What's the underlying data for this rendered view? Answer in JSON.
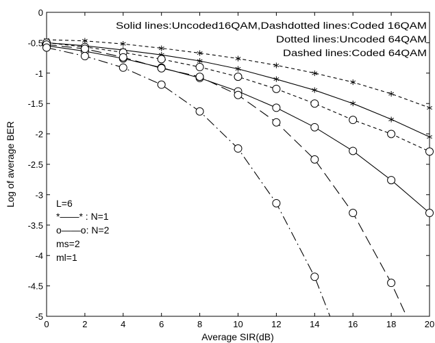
{
  "chart_data": {
    "type": "line",
    "xlabel": "Average SIR(dB)",
    "ylabel": "Log of average BER",
    "xlim": [
      0,
      20
    ],
    "ylim": [
      -5,
      0
    ],
    "xticks": [
      "0",
      "2",
      "4",
      "6",
      "8",
      "10",
      "12",
      "14",
      "16",
      "18",
      "20"
    ],
    "yticks": [
      "0",
      "-0.5",
      "-1",
      "-1.5",
      "-2",
      "-2.5",
      "-3",
      "-3.5",
      "-4",
      "-4.5",
      "-5"
    ],
    "grid": false,
    "annotations": [
      "Solid lines:Uncoded16QAM,Dashdotted lines:Coded 16QAM",
      "Dotted lines:Uncoded 64QAM",
      "Dashed lines:Coded 64QAM"
    ],
    "legend_text": {
      "l": "L=6",
      "n1": "*——* : N=1",
      "n2": "o——o: N=2",
      "ms": "ms=2",
      "ml": "ml=1"
    },
    "series": [
      {
        "style": "solid",
        "marker": "star",
        "x": [
          0,
          2,
          4,
          6,
          8,
          10,
          12,
          14,
          16,
          18,
          20
        ],
        "y": [
          -0.5,
          -0.55,
          -0.62,
          -0.7,
          -0.8,
          -0.93,
          -1.1,
          -1.28,
          -1.5,
          -1.76,
          -2.05
        ]
      },
      {
        "style": "dashed",
        "marker": "star",
        "x": [
          0,
          2,
          4,
          6,
          8,
          10,
          12,
          14,
          16,
          18,
          20
        ],
        "y": [
          -0.45,
          -0.47,
          -0.52,
          -0.59,
          -0.67,
          -0.76,
          -0.87,
          -1.0,
          -1.15,
          -1.34,
          -1.57
        ]
      },
      {
        "style": "solid",
        "marker": "circle",
        "x": [
          0,
          2,
          4,
          6,
          8,
          10,
          12,
          14,
          16,
          18,
          20
        ],
        "y": [
          -0.55,
          -0.64,
          -0.76,
          -0.91,
          -1.08,
          -1.3,
          -1.57,
          -1.89,
          -2.28,
          -2.76,
          -3.3
        ]
      },
      {
        "style": "dashed",
        "marker": "circle",
        "x": [
          0,
          2,
          4,
          6,
          8,
          10,
          12,
          14,
          16,
          18,
          20
        ],
        "y": [
          -0.5,
          -0.57,
          -0.66,
          -0.77,
          -0.9,
          -1.06,
          -1.26,
          -1.5,
          -1.77,
          -2.0,
          -2.29
        ]
      },
      {
        "style": "longdash",
        "marker": "circle",
        "x": [
          0,
          2,
          4,
          6,
          8,
          10,
          12,
          14,
          16,
          18,
          18.8
        ],
        "y": [
          -0.53,
          -0.6,
          -0.74,
          -0.92,
          -1.06,
          -1.36,
          -1.81,
          -2.42,
          -3.3,
          -4.45,
          -5.0
        ]
      },
      {
        "style": "dashdot",
        "marker": "circle",
        "x": [
          0,
          2,
          4,
          6,
          8,
          10,
          12,
          14,
          14.8
        ],
        "y": [
          -0.58,
          -0.72,
          -0.91,
          -1.19,
          -1.63,
          -2.24,
          -3.14,
          -4.35,
          -5.0
        ]
      }
    ]
  }
}
